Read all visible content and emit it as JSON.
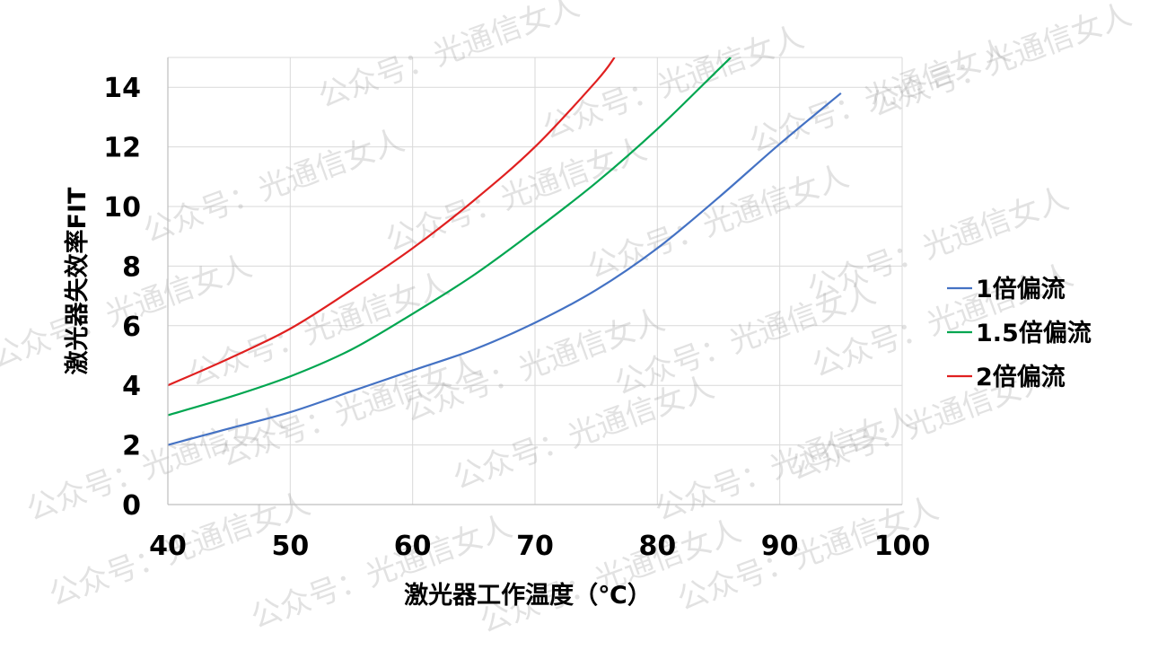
{
  "chart_data": {
    "type": "line",
    "title": "",
    "xlabel": "激光器工作温度（℃）",
    "ylabel": "激光器失效率FIT",
    "xlim": [
      40,
      100
    ],
    "ylim": [
      0,
      15
    ],
    "x_ticks": [
      "40",
      "50",
      "60",
      "70",
      "80",
      "90",
      "100"
    ],
    "y_ticks": [
      "0",
      "2",
      "4",
      "6",
      "8",
      "10",
      "12",
      "14"
    ],
    "x_tick_values": [
      40,
      50,
      60,
      70,
      80,
      90,
      100
    ],
    "y_tick_values": [
      0,
      2,
      4,
      6,
      8,
      10,
      12,
      14
    ],
    "grid": true,
    "legend_position": "right",
    "series": [
      {
        "name": "1倍偏流",
        "color": "#4472c4",
        "x": [
          40,
          45,
          50,
          55,
          60,
          65,
          70,
          75,
          80,
          85,
          90,
          95
        ],
        "y": [
          2.0,
          2.55,
          3.1,
          3.8,
          4.5,
          5.2,
          6.1,
          7.2,
          8.6,
          10.3,
          12.1,
          13.8
        ]
      },
      {
        "name": "1.5倍偏流",
        "color": "#00a650",
        "x": [
          40,
          45,
          50,
          55,
          60,
          65,
          70,
          75,
          80,
          85,
          86
        ],
        "y": [
          3.0,
          3.6,
          4.3,
          5.2,
          6.4,
          7.7,
          9.2,
          10.8,
          12.6,
          14.6,
          15.0
        ]
      },
      {
        "name": "2倍偏流",
        "color": "#e02020",
        "x": [
          40,
          45,
          50,
          55,
          60,
          65,
          70,
          75,
          76.5
        ],
        "y": [
          4.0,
          4.9,
          5.9,
          7.2,
          8.6,
          10.2,
          12.0,
          14.2,
          15.0
        ]
      }
    ]
  },
  "watermark": {
    "text": "公众号：光通信女人"
  }
}
